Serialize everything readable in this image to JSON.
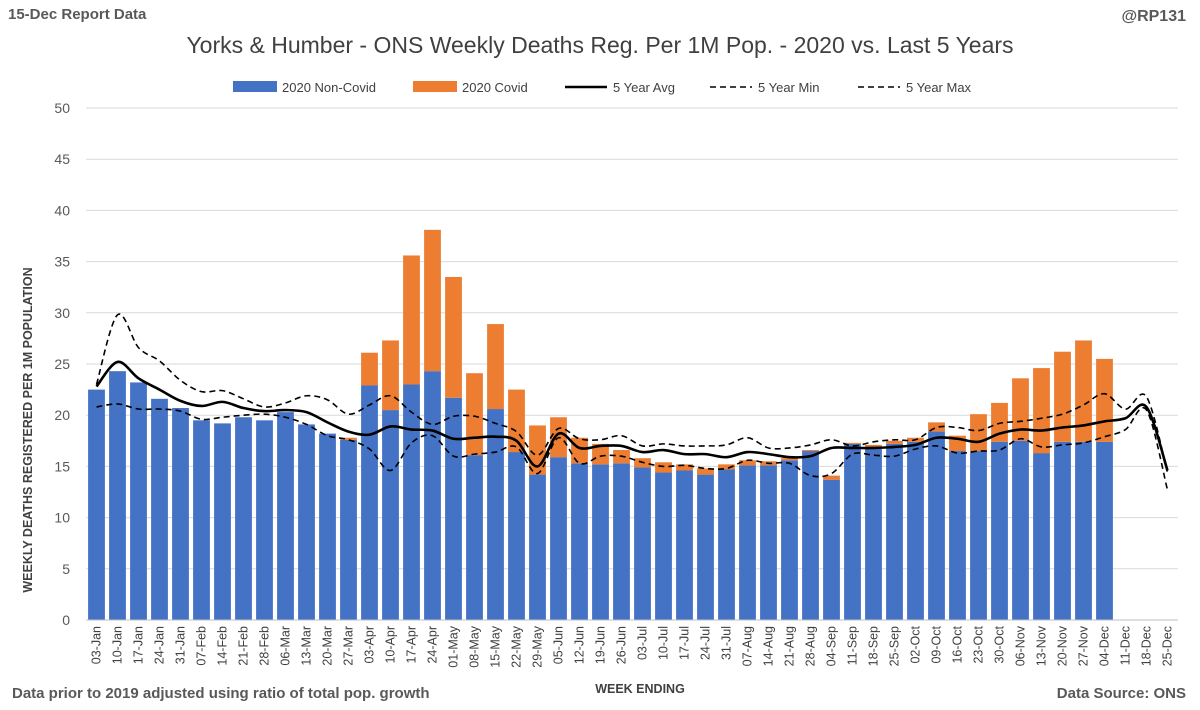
{
  "header": {
    "report_label": "15-Dec Report Data",
    "handle": "@RP131"
  },
  "footer": {
    "note": "Data prior to 2019 adjusted using ratio of total pop. growth",
    "source": "Data Source: ONS"
  },
  "colors": {
    "non_covid": "#4472C4",
    "covid": "#ED7D31",
    "avg": "#000000",
    "grid": "#D9D9D9"
  },
  "chart_data": {
    "type": "bar",
    "title": "Yorks & Humber - ONS Weekly Deaths Reg. Per 1M Pop. - 2020 vs. Last 5 Years",
    "xlabel": "WEEK ENDING",
    "ylabel": "WEEKLY DEATHS REGISTERED PER 1M POPULATION",
    "ylim": [
      0,
      50
    ],
    "yticks": [
      0,
      5,
      10,
      15,
      20,
      25,
      30,
      35,
      40,
      45,
      50
    ],
    "grid": true,
    "legend_position": "top",
    "stacked": true,
    "categories": [
      "03-Jan",
      "10-Jan",
      "17-Jan",
      "24-Jan",
      "31-Jan",
      "07-Feb",
      "14-Feb",
      "21-Feb",
      "28-Feb",
      "06-Mar",
      "13-Mar",
      "20-Mar",
      "27-Mar",
      "03-Apr",
      "10-Apr",
      "17-Apr",
      "24-Apr",
      "01-May",
      "08-May",
      "15-May",
      "22-May",
      "29-May",
      "05-Jun",
      "12-Jun",
      "19-Jun",
      "26-Jun",
      "03-Jul",
      "10-Jul",
      "17-Jul",
      "24-Jul",
      "31-Jul",
      "07-Aug",
      "14-Aug",
      "21-Aug",
      "28-Aug",
      "04-Sep",
      "11-Sep",
      "18-Sep",
      "25-Sep",
      "02-Oct",
      "09-Oct",
      "16-Oct",
      "23-Oct",
      "30-Oct",
      "06-Nov",
      "13-Nov",
      "20-Nov",
      "27-Nov",
      "04-Dec",
      "11-Dec",
      "18-Dec",
      "25-Dec"
    ],
    "series": [
      {
        "name": "2020 Non-Covid",
        "kind": "bar",
        "values": [
          22.5,
          24.3,
          23.2,
          21.6,
          20.7,
          19.5,
          19.2,
          19.8,
          19.5,
          20.3,
          19.1,
          18.2,
          17.6,
          22.9,
          20.5,
          23.0,
          24.3,
          21.7,
          16.1,
          20.6,
          16.4,
          14.2,
          15.9,
          15.3,
          15.2,
          15.3,
          14.9,
          14.4,
          14.6,
          14.2,
          14.7,
          15.1,
          15.1,
          15.6,
          16.5,
          13.7,
          17.2,
          16.7,
          17.2,
          17.4,
          18.4,
          16.5,
          16.5,
          17.4,
          17.5,
          16.3,
          17.4,
          17.4,
          17.4,
          null,
          null,
          null
        ]
      },
      {
        "name": "2020 Covid",
        "kind": "bar",
        "values": [
          0,
          0,
          0,
          0,
          0,
          0,
          0,
          0,
          0,
          0,
          0,
          0,
          0.2,
          3.2,
          6.8,
          12.6,
          13.8,
          11.8,
          8.0,
          8.3,
          6.1,
          4.8,
          3.9,
          2.5,
          2.0,
          1.3,
          0.9,
          1.0,
          0.6,
          0.6,
          0.5,
          0.5,
          0.4,
          0.2,
          0.1,
          0.4,
          0.1,
          0.4,
          0.3,
          0.4,
          0.9,
          1.5,
          3.6,
          3.8,
          6.1,
          8.3,
          8.8,
          9.9,
          8.1,
          null,
          null,
          null
        ]
      },
      {
        "name": "5 Year Avg",
        "kind": "line",
        "style": "solid",
        "values": [
          22.8,
          25.2,
          23.6,
          22.5,
          21.4,
          20.9,
          21.3,
          20.7,
          20.4,
          20.5,
          20.3,
          19.3,
          18.4,
          18.1,
          18.9,
          18.6,
          18.5,
          17.7,
          17.8,
          17.9,
          17.5,
          15.0,
          18.2,
          16.8,
          17.0,
          17.0,
          16.4,
          16.6,
          16.2,
          16.2,
          15.9,
          16.4,
          16.2,
          15.9,
          16.0,
          16.8,
          16.8,
          16.8,
          16.9,
          17.1,
          17.8,
          17.7,
          17.4,
          18.2,
          18.6,
          18.5,
          18.8,
          19.0,
          19.4,
          19.7,
          20.8,
          14.6
        ]
      },
      {
        "name": "5 Year Min",
        "kind": "line",
        "style": "dashed",
        "values": [
          20.8,
          21.1,
          20.6,
          20.6,
          20.4,
          19.6,
          19.8,
          20.0,
          20.1,
          19.8,
          19.1,
          18.0,
          17.6,
          16.7,
          14.6,
          17.3,
          18.0,
          16.0,
          16.2,
          16.4,
          16.9,
          14.3,
          17.8,
          15.3,
          16.0,
          16.0,
          15.4,
          15.0,
          15.1,
          14.8,
          14.8,
          15.6,
          15.3,
          15.3,
          14.1,
          14.3,
          16.2,
          16.1,
          16.0,
          16.7,
          17.0,
          16.3,
          16.5,
          16.6,
          17.7,
          16.9,
          17.1,
          17.3,
          17.9,
          18.6,
          20.5,
          12.7
        ]
      },
      {
        "name": "5 Year Max",
        "kind": "line",
        "style": "dashed",
        "values": [
          23.0,
          29.8,
          26.6,
          25.3,
          23.4,
          22.3,
          22.4,
          21.6,
          20.8,
          21.2,
          21.9,
          21.5,
          20.1,
          21.0,
          21.9,
          20.3,
          19.1,
          19.9,
          19.9,
          19.2,
          18.4,
          16.1,
          18.7,
          17.7,
          17.6,
          18.0,
          17.0,
          17.2,
          17.0,
          17.0,
          17.1,
          17.8,
          16.8,
          16.8,
          17.1,
          17.6,
          17.0,
          17.4,
          17.6,
          17.6,
          18.8,
          18.8,
          18.5,
          19.2,
          19.4,
          19.7,
          20.1,
          21.0,
          22.1,
          20.6,
          21.8,
          14.4
        ]
      }
    ]
  }
}
